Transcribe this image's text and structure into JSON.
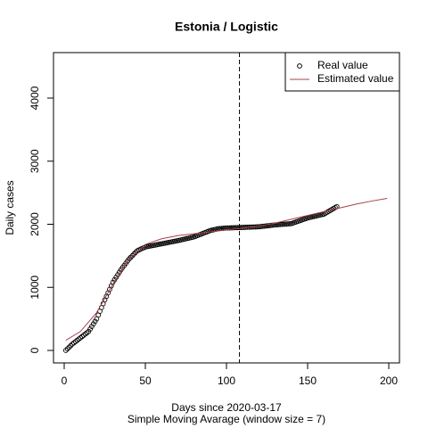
{
  "chart_data": {
    "type": "scatter",
    "title": "Estonia / Logistic",
    "xlabel": "Days since 2020-03-17",
    "subtitle": "Simple Moving Avarage (window size = 7)",
    "ylabel": "Daily cases",
    "xlim": [
      -6.6,
      206.6
    ],
    "ylim": [
      -198,
      4721
    ],
    "xticks": [
      0,
      50,
      100,
      150,
      200
    ],
    "yticks": [
      0,
      1000,
      2000,
      3000,
      4000
    ],
    "vline": 108,
    "legend": "top-right",
    "series": [
      {
        "name": "Real value",
        "mark": "points",
        "color": "#000000",
        "x": [
          1,
          2,
          3,
          4,
          5,
          6,
          7,
          8,
          9,
          10,
          11,
          12,
          13,
          14,
          15,
          16,
          17,
          18,
          19,
          20,
          21,
          22,
          23,
          24,
          25,
          26,
          27,
          28,
          29,
          30,
          31,
          32,
          33,
          34,
          35,
          36,
          37,
          38,
          39,
          40,
          41,
          42,
          43,
          44,
          45,
          46,
          47,
          48,
          49,
          50,
          51,
          52,
          53,
          54,
          55,
          56,
          57,
          58,
          59,
          60,
          61,
          62,
          63,
          64,
          65,
          66,
          67,
          68,
          69,
          70,
          71,
          72,
          73,
          74,
          75,
          76,
          77,
          78,
          79,
          80,
          81,
          82,
          83,
          84,
          85,
          86,
          87,
          88,
          89,
          90,
          91,
          92,
          93,
          94,
          95,
          96,
          97,
          98,
          99,
          100,
          101,
          102,
          103,
          104,
          105,
          106,
          107,
          108,
          109,
          110,
          111,
          112,
          113,
          114,
          115,
          116,
          117,
          118,
          119,
          120,
          121,
          122,
          123,
          124,
          125,
          126,
          127,
          128,
          129,
          130,
          131,
          132,
          133,
          134,
          135,
          136,
          137,
          138,
          139,
          140,
          141,
          142,
          143,
          144,
          145,
          146,
          147,
          148,
          149,
          150,
          151,
          152,
          153,
          154,
          155,
          156,
          157,
          158,
          159,
          160,
          161,
          162,
          163,
          164,
          165,
          166,
          167,
          168
        ],
        "values": [
          0,
          25,
          50,
          75,
          100,
          120,
          140,
          160,
          180,
          200,
          220,
          240,
          260,
          280,
          300,
          340,
          380,
          420,
          460,
          500,
          560,
          620,
          680,
          740,
          800,
          856,
          912,
          968,
          1024,
          1080,
          1120,
          1160,
          1200,
          1240,
          1280,
          1314,
          1348,
          1382,
          1416,
          1450,
          1476,
          1502,
          1528,
          1554,
          1580,
          1592,
          1604,
          1616,
          1628,
          1640,
          1645,
          1650,
          1655,
          1660,
          1665,
          1670,
          1675,
          1680,
          1685,
          1690,
          1695,
          1700,
          1705,
          1710,
          1715,
          1720,
          1725,
          1730,
          1735,
          1740,
          1746,
          1752,
          1758,
          1764,
          1770,
          1776,
          1782,
          1788,
          1794,
          1800,
          1810,
          1820,
          1830,
          1840,
          1850,
          1860,
          1870,
          1880,
          1890,
          1900,
          1906,
          1912,
          1918,
          1924,
          1930,
          1932,
          1934,
          1936,
          1938,
          1940,
          1941,
          1942,
          1943,
          1944,
          1945,
          1946,
          1947,
          1948,
          1949,
          1950,
          1951,
          1952,
          1953,
          1954,
          1955,
          1956,
          1957,
          1958,
          1959,
          1960,
          1963,
          1966,
          1969,
          1972,
          1975,
          1978,
          1981,
          1984,
          1987,
          1990,
          1992,
          1994,
          1996,
          1998,
          2000,
          2002,
          2004,
          2006,
          2008,
          2010,
          2019,
          2028,
          2037,
          2046,
          2055,
          2064,
          2073,
          2082,
          2091,
          2100,
          2106,
          2112,
          2118,
          2124,
          2130,
          2136,
          2142,
          2148,
          2154,
          2160,
          2175,
          2190,
          2205,
          2220,
          2235,
          2250,
          2265,
          2280
        ]
      },
      {
        "name": "Estimated value",
        "mark": "line",
        "color": "#a8404a",
        "x": [
          1,
          10,
          20,
          30,
          40,
          50,
          60,
          70,
          80,
          90,
          100,
          110,
          120,
          130,
          140,
          150,
          160,
          170,
          180,
          190,
          199
        ],
        "values": [
          160,
          300,
          600,
          1050,
          1450,
          1680,
          1770,
          1820,
          1850,
          1880,
          1910,
          1940,
          1970,
          2020,
          2080,
          2140,
          2200,
          2260,
          2320,
          2370,
          2410
        ]
      }
    ]
  }
}
